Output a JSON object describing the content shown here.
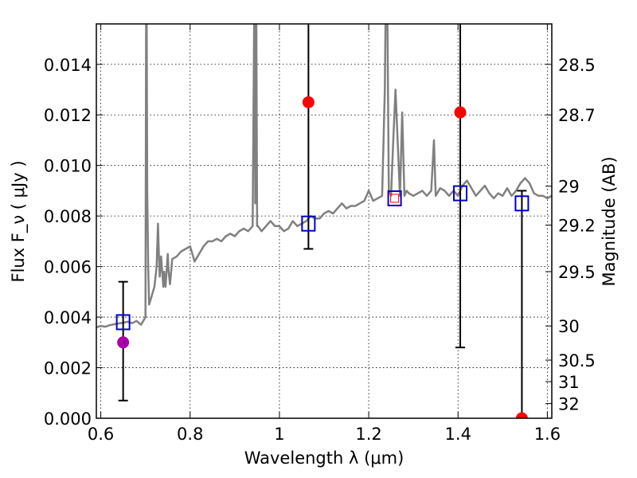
{
  "chart_data": {
    "type": "line",
    "title": "",
    "xlabel": "Wavelength  λ (μm)",
    "ylabel": "Flux  F_ν  ( μJy )",
    "ylabel_right": "Magnitude (AB)",
    "xlim": [
      0.59,
      1.61
    ],
    "ylim": [
      0.0,
      0.0156
    ],
    "grid": true,
    "legend": "none",
    "x_ticks": [
      0.6,
      0.8,
      1.0,
      1.2,
      1.4,
      1.6
    ],
    "x_tick_labels": [
      "0.6",
      "0.8",
      "1",
      "1.2",
      "1.4",
      "1.6"
    ],
    "y_ticks": [
      0.0,
      0.002,
      0.004,
      0.006,
      0.008,
      0.01,
      0.012,
      0.014
    ],
    "y_tick_labels": [
      "0.000",
      "0.002",
      "0.004",
      "0.006",
      "0.008",
      "0.010",
      "0.012",
      "0.014"
    ],
    "right_ticks": [
      {
        "label": "28.5",
        "flux": 0.014
      },
      {
        "label": "28.7",
        "flux": 0.012
      },
      {
        "label": "29",
        "flux": 0.00918
      },
      {
        "label": "29.2",
        "flux": 0.00764
      },
      {
        "label": "29.5",
        "flux": 0.0058
      },
      {
        "label": "30",
        "flux": 0.00365
      },
      {
        "label": "30.5",
        "flux": 0.0023
      },
      {
        "label": "31",
        "flux": 0.00145
      },
      {
        "label": "32",
        "flux": 0.00058
      }
    ],
    "colors": {
      "spectrum": "#808080",
      "model": "#0000cc",
      "detection": "#ff0000",
      "detection_alt": "#aa00aa",
      "errorbar": "#000000"
    },
    "spectrum": {
      "name": "",
      "x": [
        0.59,
        0.6,
        0.61,
        0.62,
        0.63,
        0.64,
        0.65,
        0.66,
        0.67,
        0.68,
        0.69,
        0.7,
        0.702,
        0.704,
        0.706,
        0.708,
        0.71,
        0.72,
        0.725,
        0.728,
        0.73,
        0.732,
        0.735,
        0.74,
        0.742,
        0.745,
        0.748,
        0.75,
        0.752,
        0.755,
        0.76,
        0.77,
        0.78,
        0.79,
        0.8,
        0.81,
        0.82,
        0.83,
        0.84,
        0.85,
        0.86,
        0.87,
        0.88,
        0.89,
        0.9,
        0.91,
        0.92,
        0.93,
        0.94,
        0.944,
        0.946,
        0.948,
        0.95,
        0.952,
        0.96,
        0.97,
        0.98,
        0.99,
        1.0,
        1.01,
        1.02,
        1.03,
        1.04,
        1.05,
        1.06,
        1.07,
        1.08,
        1.09,
        1.1,
        1.11,
        1.12,
        1.13,
        1.14,
        1.15,
        1.16,
        1.17,
        1.18,
        1.19,
        1.2,
        1.21,
        1.22,
        1.23,
        1.236,
        1.24,
        1.245,
        1.25,
        1.255,
        1.26,
        1.27,
        1.275,
        1.28,
        1.285,
        1.29,
        1.3,
        1.31,
        1.32,
        1.33,
        1.34,
        1.346,
        1.35,
        1.36,
        1.37,
        1.38,
        1.39,
        1.4,
        1.41,
        1.42,
        1.43,
        1.44,
        1.45,
        1.46,
        1.47,
        1.48,
        1.49,
        1.5,
        1.51,
        1.52,
        1.53,
        1.54,
        1.55,
        1.56,
        1.57,
        1.58,
        1.59,
        1.6,
        1.61
      ],
      "y": [
        0.0036,
        0.00365,
        0.00362,
        0.00368,
        0.00372,
        0.00375,
        0.00378,
        0.00382,
        0.00376,
        0.00385,
        0.0037,
        0.004,
        0.02,
        0.009,
        0.006,
        0.0045,
        0.0046,
        0.0052,
        0.006,
        0.0077,
        0.0065,
        0.0056,
        0.0064,
        0.0052,
        0.0058,
        0.0052,
        0.006,
        0.0065,
        0.0058,
        0.0053,
        0.0063,
        0.0064,
        0.0066,
        0.0067,
        0.0068,
        0.0062,
        0.0065,
        0.0068,
        0.007,
        0.007,
        0.0071,
        0.007,
        0.0072,
        0.0073,
        0.0072,
        0.0074,
        0.0075,
        0.0074,
        0.0076,
        0.017,
        0.0085,
        0.017,
        0.0076,
        0.0076,
        0.0074,
        0.0076,
        0.0078,
        0.0076,
        0.0076,
        0.0074,
        0.0075,
        0.0078,
        0.0076,
        0.0077,
        0.0078,
        0.008,
        0.0079,
        0.0079,
        0.0081,
        0.0082,
        0.0081,
        0.0083,
        0.0085,
        0.0083,
        0.0084,
        0.0084,
        0.0085,
        0.0086,
        0.009,
        0.0086,
        0.0087,
        0.0088,
        0.013,
        0.02,
        0.009,
        0.0088,
        0.011,
        0.013,
        0.0088,
        0.0121,
        0.0088,
        0.009,
        0.0089,
        0.0088,
        0.0089,
        0.009,
        0.0088,
        0.009,
        0.011,
        0.0088,
        0.0091,
        0.009,
        0.0088,
        0.009,
        0.0088,
        0.0092,
        0.0094,
        0.0091,
        0.0088,
        0.009,
        0.0092,
        0.0089,
        0.0087,
        0.0089,
        0.0088,
        0.0091,
        0.0088,
        0.009,
        0.0093,
        0.0095,
        0.0093,
        0.0089,
        0.0088,
        0.0088,
        0.0087,
        0.0088
      ]
    },
    "model_points": {
      "name": "",
      "x": [
        0.65,
        1.065,
        1.258,
        1.405,
        1.543
      ],
      "y": [
        0.0038,
        0.0077,
        0.0087,
        0.0089,
        0.0085
      ]
    },
    "photometry": {
      "name": "",
      "x": [
        0.65,
        1.065,
        1.405,
        1.543
      ],
      "y": [
        0.003,
        0.0125,
        0.0121,
        0.0
      ],
      "err_low": [
        0.0007,
        0.0067,
        0.0028,
        0.0
      ],
      "err_high": [
        0.0054,
        0.016,
        0.016,
        0.009
      ],
      "colors": [
        "#aa00aa",
        "#ff0000",
        "#ff0000",
        "#ff0000"
      ]
    },
    "inner_marker": {
      "x": 1.258,
      "y": 0.0087,
      "color": "#ff0000"
    }
  }
}
